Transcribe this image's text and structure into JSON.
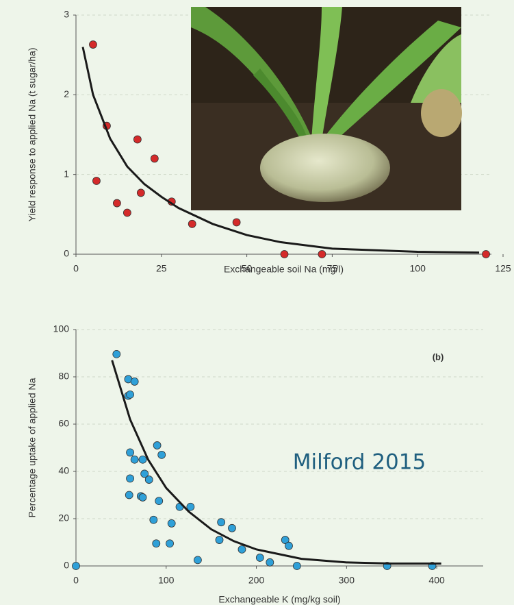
{
  "chart_data": [
    {
      "type": "scatter",
      "x_label": "Exchangeable soil Na (mg/l)",
      "y_label": "Yield response to applied Na (t sugar/ha)",
      "xlim": [
        0,
        125
      ],
      "xticks": [
        0,
        25,
        50,
        75,
        100,
        125
      ],
      "ylim": [
        0,
        3
      ],
      "yticks": [
        0,
        1,
        2,
        3
      ],
      "grid": true,
      "series": [
        {
          "mode": "markers",
          "color": "#d42a2a",
          "x": [
            5,
            6,
            9,
            12,
            15,
            18,
            19,
            23,
            28,
            34,
            47,
            61,
            72,
            120
          ],
          "values": [
            2.63,
            0.92,
            1.61,
            0.64,
            0.52,
            1.44,
            0.77,
            1.2,
            0.66,
            0.38,
            0.4,
            0,
            0,
            0
          ]
        },
        {
          "mode": "line",
          "color": "#1a1a1a",
          "x": [
            2,
            5,
            10,
            15,
            20,
            25,
            30,
            40,
            50,
            60,
            75,
            100,
            118
          ],
          "values": [
            2.6,
            2.0,
            1.45,
            1.1,
            0.88,
            0.72,
            0.58,
            0.38,
            0.24,
            0.15,
            0.07,
            0.03,
            0.02
          ]
        }
      ]
    },
    {
      "type": "scatter",
      "x_label": "Exchangeable K (mg/kg soil)",
      "y_label": "Percentage uptake of applied Na",
      "annotation": "(b)",
      "xlim": [
        0,
        450
      ],
      "xticks": [
        0,
        100,
        200,
        300,
        400
      ],
      "ylim": [
        0,
        100
      ],
      "yticks": [
        0,
        20,
        40,
        60,
        80,
        100
      ],
      "grid": true,
      "series": [
        {
          "mode": "markers",
          "color": "#2fa0d8",
          "x": [
            0,
            45,
            58,
            65,
            58,
            60,
            60,
            65,
            74,
            60,
            76,
            81,
            59,
            72,
            74,
            90,
            95,
            92,
            86,
            106,
            89,
            104,
            115,
            127,
            135,
            161,
            173,
            159,
            184,
            204,
            215,
            232,
            236,
            245,
            345,
            395
          ],
          "values": [
            0,
            89.6,
            79,
            78,
            72,
            72.5,
            48,
            45,
            45,
            37,
            39,
            36.5,
            30,
            29.5,
            29,
            51,
            47,
            27.5,
            19.5,
            18,
            9.5,
            9.5,
            25,
            25,
            2.5,
            18.5,
            16,
            11,
            7,
            3.5,
            1.5,
            11,
            8.5,
            0,
            0,
            0
          ]
        },
        {
          "mode": "line",
          "color": "#1a1a1a",
          "x": [
            40,
            60,
            80,
            100,
            125,
            150,
            175,
            200,
            250,
            300,
            350,
            405
          ],
          "values": [
            87,
            62,
            45,
            33,
            23,
            15.5,
            10.5,
            7,
            3,
            1.5,
            1,
            1
          ]
        }
      ]
    }
  ],
  "caption": "Milford 2015"
}
